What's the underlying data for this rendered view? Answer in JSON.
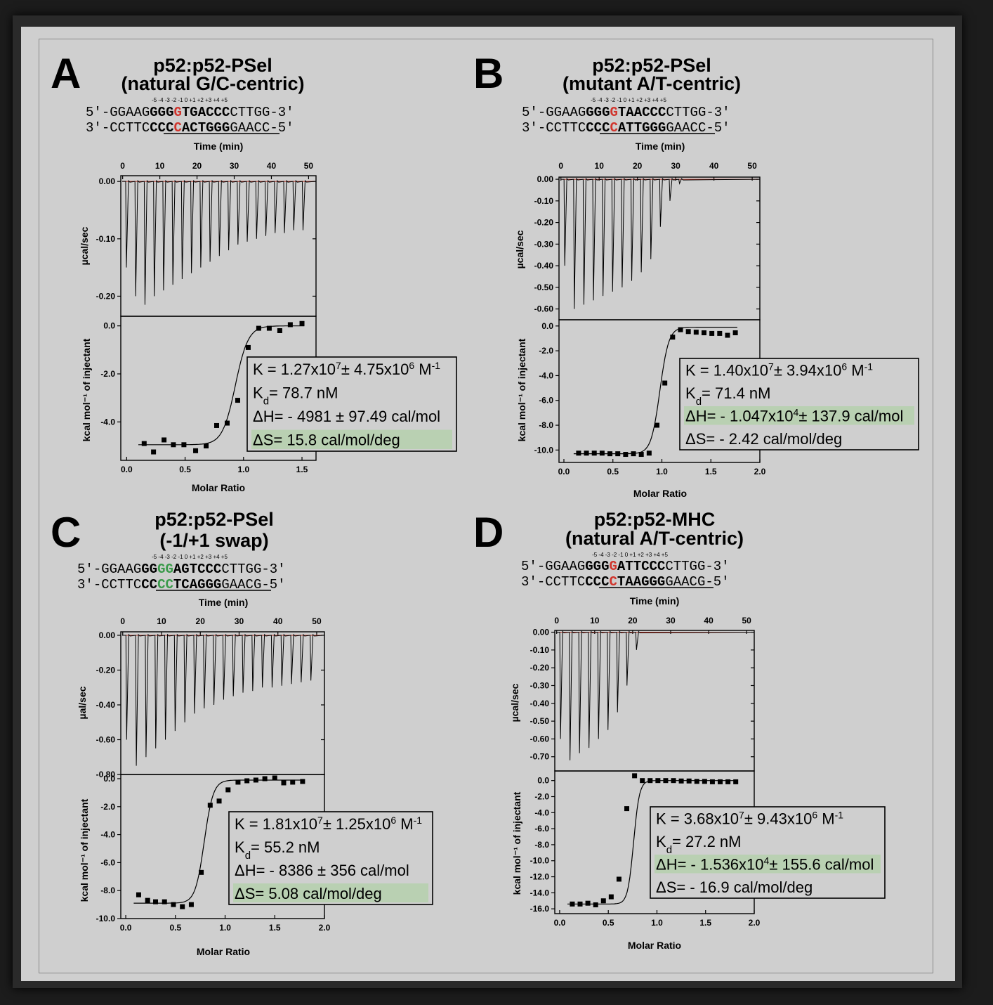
{
  "chart_data": [
    {
      "type": "scatter",
      "panel_letter": "A",
      "title_line1": "p52:p52-PSel",
      "title_line2": "(natural G/C-centric)",
      "seq_positions": "-5 -4 -3 -2 -1 0 +1 +2 +3 +4 +5",
      "seq_top": "5'-GGAAGGGGGTGACCCCTTGG-3'",
      "seq_bottom": "3'-CCTTCCCCCACTGGGGAACC-5'",
      "highlight": {
        "index": 11,
        "top_color": "#d0342c",
        "bottom_color": "#d0342c"
      },
      "top_xlabel": "Time (min)",
      "top_ylabel": "µcal/sec",
      "bottom_ylabel": "kcal mol⁻¹ of injectant",
      "bottom_xlabel": "Molar Ratio",
      "time_xlim": [
        -0.5,
        52
      ],
      "time_ticks": [
        0,
        10,
        20,
        30,
        40,
        50
      ],
      "top_ylim": [
        -0.235,
        0.01
      ],
      "top_yticks": [
        0.0,
        -0.1,
        -0.2
      ],
      "top_ytick_labels": [
        "0.00",
        "-0.10",
        "-0.20"
      ],
      "injection_times": [
        1,
        3.5,
        6,
        8.5,
        11,
        13.5,
        16,
        18.5,
        21,
        23.5,
        26,
        28.5,
        31,
        33.5,
        36,
        38.5,
        41,
        43.5,
        46,
        48.5
      ],
      "injection_peaks": [
        -0.15,
        -0.2,
        -0.215,
        -0.2,
        -0.19,
        -0.18,
        -0.17,
        -0.16,
        -0.15,
        -0.14,
        -0.13,
        -0.12,
        -0.11,
        -0.105,
        -0.1,
        -0.095,
        -0.09,
        -0.09,
        -0.085,
        -0.085
      ],
      "ratio_xlim": [
        -0.05,
        1.62
      ],
      "ratio_ticks": [
        0.0,
        0.5,
        1.0,
        1.5
      ],
      "ratio_tick_labels": [
        "0.0",
        "0.5",
        "1.0",
        "1.5"
      ],
      "bottom_ylim": [
        -5.6,
        0.4
      ],
      "bottom_yticks": [
        0.0,
        -2.0,
        -4.0
      ],
      "bottom_ytick_labels": [
        "0.0",
        "-2.0",
        "-4.0"
      ],
      "points_x": [
        0.15,
        0.23,
        0.32,
        0.4,
        0.49,
        0.59,
        0.68,
        0.77,
        0.86,
        0.95,
        1.04,
        1.13,
        1.22,
        1.31,
        1.4,
        1.5
      ],
      "points_y": [
        -4.9,
        -5.25,
        -4.75,
        -4.95,
        -4.95,
        -5.2,
        -5.0,
        -4.15,
        -4.05,
        -3.1,
        -0.9,
        -0.1,
        -0.1,
        -0.2,
        0.05,
        0.1
      ],
      "fit": {
        "lower": -4.95,
        "upper": 0.0,
        "mid": 0.93,
        "width": 0.055
      },
      "params": {
        "K_main": "K = 1.27x10",
        "K_exp1": "7",
        "K_mid": "± 4.75x10",
        "K_exp2": "6",
        "K_unit": " M",
        "K_exp3": "-1",
        "Kd_main": "K",
        "Kd_sub": "d",
        "Kd_rest": "= 78.7 nM",
        "dH_main": "ΔH= - 4981 ± 97.49 cal/mol",
        "dH_exp": "",
        "dH_rest": "",
        "dS": "ΔS= 15.8 cal/mol/deg",
        "highlight_row": "dS"
      }
    },
    {
      "type": "scatter",
      "panel_letter": "B",
      "title_line1": "p52:p52-PSel",
      "title_line2": "(mutant A/T-centric)",
      "seq_positions": "-5 -4 -3 -2 -1 0 +1 +2 +3 +4 +5",
      "seq_top": "5'-GGAAGGGGGTAACCCCTTGG-3'",
      "seq_bottom": "3'-CCTTCCCCCATTGGGGAACC-5'",
      "highlight": {
        "index": 11,
        "top_color": "#d0342c",
        "bottom_color": "#d0342c"
      },
      "top_xlabel": "Time (min)",
      "top_ylabel": "µcal/sec",
      "bottom_ylabel": "kcal mol⁻¹ of injectant",
      "bottom_xlabel": "Molar Ratio",
      "time_xlim": [
        -0.5,
        52
      ],
      "time_ticks": [
        0,
        10,
        20,
        30,
        40,
        50
      ],
      "top_ylim": [
        -0.65,
        0.01
      ],
      "top_yticks": [
        0.0,
        -0.1,
        -0.2,
        -0.3,
        -0.4,
        -0.5,
        -0.6
      ],
      "top_ytick_labels": [
        "0.00",
        "-0.10",
        "-0.20",
        "-0.30",
        "-0.40",
        "-0.50",
        "-0.60"
      ],
      "injection_times": [
        1,
        3.5,
        6,
        8.5,
        11,
        13.5,
        16,
        18.5,
        21,
        23.5,
        26,
        28.5,
        31
      ],
      "injection_peaks": [
        -0.4,
        -0.6,
        -0.58,
        -0.56,
        -0.54,
        -0.52,
        -0.5,
        -0.47,
        -0.43,
        -0.37,
        -0.22,
        -0.1,
        -0.02
      ],
      "ratio_xlim": [
        -0.05,
        2.0
      ],
      "ratio_ticks": [
        0.0,
        0.5,
        1.0,
        1.5,
        2.0
      ],
      "ratio_tick_labels": [
        "0.0",
        "0.5",
        "1.0",
        "1.5",
        "2.0"
      ],
      "bottom_ylim": [
        -11.0,
        0.5
      ],
      "bottom_yticks": [
        0.0,
        -2.0,
        -4.0,
        -6.0,
        -8.0,
        -10.0
      ],
      "bottom_ytick_labels": [
        "0.0",
        "-2.0",
        "-4.0",
        "-6.0",
        "-8.0",
        "-10.0"
      ],
      "points_x": [
        0.15,
        0.23,
        0.31,
        0.39,
        0.47,
        0.55,
        0.63,
        0.71,
        0.79,
        0.87,
        0.95,
        1.03,
        1.11,
        1.19,
        1.27,
        1.35,
        1.43,
        1.51,
        1.59,
        1.67,
        1.75
      ],
      "points_y": [
        -10.25,
        -10.25,
        -10.25,
        -10.25,
        -10.3,
        -10.3,
        -10.35,
        -10.3,
        -10.35,
        -10.25,
        -8.0,
        -4.6,
        -0.9,
        -0.3,
        -0.45,
        -0.5,
        -0.55,
        -0.6,
        -0.6,
        -0.75,
        -0.55
      ],
      "fit": {
        "lower": -10.3,
        "upper": -0.1,
        "mid": 0.98,
        "width": 0.045
      },
      "params": {
        "K_main": "K = 1.40x10",
        "K_exp1": "7",
        "K_mid": "± 3.94x10",
        "K_exp2": "6",
        "K_unit": " M",
        "K_exp3": "-1",
        "Kd_main": "K",
        "Kd_sub": "d",
        "Kd_rest": "= 71.4 nM",
        "dH_main": "ΔH= - 1.047x10",
        "dH_exp": "4",
        "dH_rest": "± 137.9 cal/mol",
        "dS": "ΔS= - 2.42 cal/mol/deg",
        "highlight_row": "dH"
      }
    },
    {
      "type": "scatter",
      "panel_letter": "C",
      "title_line1": "p52:p52-PSel",
      "title_line2": "(-1/+1 swap)",
      "seq_positions": "-5 -4 -3 -2 -1 0 +1 +2 +3 +4 +5",
      "seq_top": "5'-GGAAGGGGGAGTCCCCTTGG-3'",
      "seq_bottom": "3'-CCTTCCCCCTCAGGGGAACG-5'",
      "highlight": {
        "index": 10,
        "index2": 11,
        "top_color": "#3a9a4a",
        "bottom_color": "#3a9a4a"
      },
      "top_xlabel": "Time (min)",
      "top_ylabel": "µal/sec",
      "bottom_ylabel": "kcal mol⁻¹ of injectant",
      "bottom_xlabel": "Molar Ratio",
      "time_xlim": [
        -0.5,
        52
      ],
      "time_ticks": [
        0,
        10,
        20,
        30,
        40,
        50
      ],
      "top_ylim": [
        -0.8,
        0.02
      ],
      "top_yticks": [
        0.0,
        -0.2,
        -0.4,
        -0.6,
        -0.8
      ],
      "top_ytick_labels": [
        "0.00",
        "-0.20",
        "-0.40",
        "-0.60",
        "-0.80"
      ],
      "injection_times": [
        1,
        3.5,
        6,
        8.5,
        11,
        13.5,
        16,
        18.5,
        21,
        23.5,
        26,
        28.5,
        31,
        33.5,
        36,
        38.5,
        41,
        43.5,
        46,
        48.5
      ],
      "injection_peaks": [
        -0.6,
        -0.75,
        -0.7,
        -0.65,
        -0.6,
        -0.55,
        -0.5,
        -0.45,
        -0.42,
        -0.4,
        -0.37,
        -0.35,
        -0.33,
        -0.32,
        -0.3,
        -0.3,
        -0.29,
        -0.28,
        -0.27,
        -0.26
      ],
      "ratio_xlim": [
        -0.05,
        2.0
      ],
      "ratio_ticks": [
        0.0,
        0.5,
        1.0,
        1.5,
        2.0
      ],
      "ratio_tick_labels": [
        "0.0",
        "0.5",
        "1.0",
        "1.5",
        "2.0"
      ],
      "bottom_ylim": [
        -10.0,
        0.3
      ],
      "bottom_yticks": [
        0.0,
        -2.0,
        -4.0,
        -6.0,
        -8.0,
        -10.0
      ],
      "bottom_ytick_labels": [
        "0.0",
        "-2.0",
        "-4.0",
        "-6.0",
        "-8.0",
        "-10.0"
      ],
      "points_x": [
        0.13,
        0.22,
        0.3,
        0.39,
        0.48,
        0.57,
        0.66,
        0.76,
        0.85,
        0.94,
        1.03,
        1.13,
        1.22,
        1.31,
        1.4,
        1.5,
        1.59,
        1.68,
        1.78
      ],
      "points_y": [
        -8.3,
        -8.7,
        -8.8,
        -8.8,
        -9.0,
        -9.15,
        -9.0,
        -6.7,
        -1.9,
        -1.6,
        -0.8,
        -0.25,
        -0.15,
        -0.1,
        0.0,
        0.05,
        -0.3,
        -0.25,
        -0.2
      ],
      "fit": {
        "lower": -8.9,
        "upper": -0.1,
        "mid": 0.79,
        "width": 0.045
      },
      "params": {
        "K_main": "K = 1.81x10",
        "K_exp1": "7",
        "K_mid": "± 1.25x10",
        "K_exp2": "6",
        "K_unit": " M",
        "K_exp3": "-1",
        "Kd_main": "K",
        "Kd_sub": "d",
        "Kd_rest": "= 55.2 nM",
        "dH_main": "ΔH= - 8386 ± 356 cal/mol",
        "dH_exp": "",
        "dH_rest": "",
        "dS": "ΔS= 5.08 cal/mol/deg",
        "highlight_row": "dS"
      }
    },
    {
      "type": "scatter",
      "panel_letter": "D",
      "title_line1": "p52:p52-MHC",
      "title_line2": "(natural A/T-centric)",
      "seq_positions": "-5 -4 -3 -2 -1 0 +1 +2 +3 +4 +5",
      "seq_top": "5'-GGAAGGGGGATTCCCCTTGG-3'",
      "seq_bottom": "3'-CCTTCCCCCTAAGGGGAACG-5'",
      "highlight": {
        "index": 11,
        "top_color": "#d0342c",
        "bottom_color": "#d0342c"
      },
      "top_xlabel": "Time (min)",
      "top_ylabel": "µcal/sec",
      "bottom_ylabel": "kcal mol⁻¹ of injectant",
      "bottom_xlabel": "Molar Ratio",
      "time_xlim": [
        -0.5,
        52
      ],
      "time_ticks": [
        0,
        10,
        20,
        30,
        40,
        50
      ],
      "top_ylim": [
        -0.78,
        0.01
      ],
      "top_yticks": [
        0.0,
        -0.1,
        -0.2,
        -0.3,
        -0.4,
        -0.5,
        -0.6,
        -0.7
      ],
      "top_ytick_labels": [
        "0.00",
        "-0.10",
        "-0.20",
        "-0.30",
        "-0.40",
        "-0.50",
        "-0.60",
        "-0.70"
      ],
      "injection_times": [
        1,
        3.5,
        6,
        8.5,
        11,
        13.5,
        16,
        18.5,
        21
      ],
      "injection_peaks": [
        -0.6,
        -0.72,
        -0.68,
        -0.65,
        -0.6,
        -0.55,
        -0.45,
        -0.3,
        -0.1
      ],
      "ratio_xlim": [
        -0.05,
        2.0
      ],
      "ratio_ticks": [
        0.0,
        0.5,
        1.0,
        1.5,
        2.0
      ],
      "ratio_tick_labels": [
        "0.0",
        "0.5",
        "1.0",
        "1.5",
        "2.0"
      ],
      "bottom_ylim": [
        -16.6,
        1.2
      ],
      "bottom_yticks": [
        0.0,
        -2.0,
        -4.0,
        -6.0,
        -8.0,
        -10.0,
        -12.0,
        -14.0,
        -16.0
      ],
      "bottom_ytick_labels": [
        "0.0",
        "-2.0",
        "-4.0",
        "-6.0",
        "-8.0",
        "-10.0",
        "-12.0",
        "-14.0",
        "-16.0"
      ],
      "points_x": [
        0.13,
        0.21,
        0.29,
        0.37,
        0.45,
        0.53,
        0.61,
        0.69,
        0.77,
        0.85,
        0.93,
        1.01,
        1.09,
        1.17,
        1.25,
        1.33,
        1.41,
        1.49,
        1.57,
        1.65,
        1.73,
        1.81
      ],
      "points_y": [
        -15.4,
        -15.4,
        -15.3,
        -15.5,
        -15.0,
        -14.5,
        -12.3,
        -3.5,
        0.6,
        0.0,
        0.0,
        0.0,
        0.0,
        0.0,
        -0.05,
        -0.05,
        -0.1,
        -0.1,
        -0.15,
        -0.15,
        -0.15,
        -0.15
      ],
      "fit": {
        "lower": -15.4,
        "upper": 0.0,
        "mid": 0.76,
        "width": 0.03
      },
      "params": {
        "K_main": "K = 3.68x10",
        "K_exp1": "7",
        "K_mid": "± 9.43x10",
        "K_exp2": "6",
        "K_unit": " M",
        "K_exp3": "-1",
        "Kd_main": "K",
        "Kd_sub": "d",
        "Kd_rest": "= 27.2 nM",
        "dH_main": "ΔH= - 1.536x10",
        "dH_exp": "4",
        "dH_rest": "± 155.6 cal/mol",
        "dS": "ΔS= - 16.9 cal/mol/deg",
        "highlight_row": "dH"
      }
    }
  ],
  "colors": {
    "trace": "#000000",
    "baseline": "#c0392b",
    "param_highlight": "#b9d0b2",
    "panel_bg": "#cfcfcf"
  }
}
